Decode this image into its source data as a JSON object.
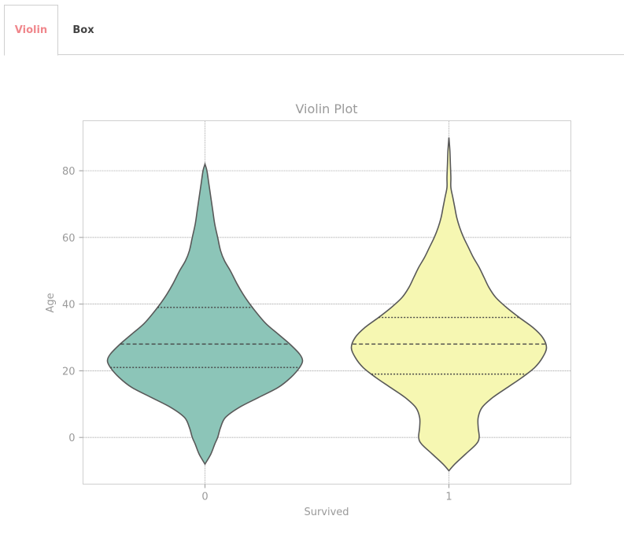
{
  "tabs": [
    {
      "label": "Violin",
      "active": true
    },
    {
      "label": "Box",
      "active": false
    }
  ],
  "colors": {
    "active_tab": "#f0878c",
    "grid": "#a0a0a0",
    "violin_outline": "#595959"
  },
  "chart_data": {
    "type": "violin",
    "title": "Violin Plot",
    "xlabel": "Survived",
    "ylabel": "Age",
    "categories": [
      "0",
      "1"
    ],
    "ylim": [
      -14,
      95
    ],
    "yticks": [
      0,
      20,
      40,
      60,
      80
    ],
    "grid": true,
    "inner": "quartile",
    "series": [
      {
        "category": "0",
        "color": "#8cc5b8",
        "quartiles": [
          21,
          28,
          39
        ],
        "min": -8,
        "max": 82,
        "density": [
          [
            -8,
            0.0
          ],
          [
            -5,
            0.06
          ],
          [
            -2,
            0.1
          ],
          [
            0,
            0.13
          ],
          [
            3,
            0.16
          ],
          [
            6,
            0.21
          ],
          [
            9,
            0.35
          ],
          [
            12,
            0.55
          ],
          [
            15,
            0.75
          ],
          [
            18,
            0.88
          ],
          [
            21,
            0.97
          ],
          [
            23,
            1.0
          ],
          [
            25,
            0.97
          ],
          [
            28,
            0.87
          ],
          [
            31,
            0.75
          ],
          [
            34,
            0.63
          ],
          [
            37,
            0.54
          ],
          [
            40,
            0.46
          ],
          [
            43,
            0.39
          ],
          [
            46,
            0.33
          ],
          [
            50,
            0.26
          ],
          [
            53,
            0.2
          ],
          [
            56,
            0.16
          ],
          [
            60,
            0.13
          ],
          [
            64,
            0.1
          ],
          [
            68,
            0.08
          ],
          [
            72,
            0.06
          ],
          [
            76,
            0.04
          ],
          [
            80,
            0.02
          ],
          [
            82,
            0.0
          ]
        ]
      },
      {
        "category": "1",
        "color": "#f6f7b2",
        "quartiles": [
          19,
          28,
          36
        ],
        "min": -10,
        "max": 90,
        "density": [
          [
            -10,
            0.0
          ],
          [
            -8,
            0.06
          ],
          [
            -5,
            0.17
          ],
          [
            -2,
            0.28
          ],
          [
            0,
            0.31
          ],
          [
            3,
            0.3
          ],
          [
            6,
            0.3
          ],
          [
            9,
            0.34
          ],
          [
            12,
            0.45
          ],
          [
            15,
            0.6
          ],
          [
            18,
            0.75
          ],
          [
            21,
            0.88
          ],
          [
            24,
            0.96
          ],
          [
            27,
            1.0
          ],
          [
            30,
            0.96
          ],
          [
            33,
            0.86
          ],
          [
            36,
            0.72
          ],
          [
            39,
            0.59
          ],
          [
            42,
            0.48
          ],
          [
            45,
            0.41
          ],
          [
            48,
            0.36
          ],
          [
            51,
            0.31
          ],
          [
            54,
            0.25
          ],
          [
            57,
            0.2
          ],
          [
            60,
            0.15
          ],
          [
            63,
            0.11
          ],
          [
            66,
            0.08
          ],
          [
            69,
            0.06
          ],
          [
            72,
            0.04
          ],
          [
            75,
            0.02
          ],
          [
            78,
            0.02
          ],
          [
            82,
            0.015
          ],
          [
            86,
            0.01
          ],
          [
            90,
            0.0
          ]
        ]
      }
    ]
  }
}
